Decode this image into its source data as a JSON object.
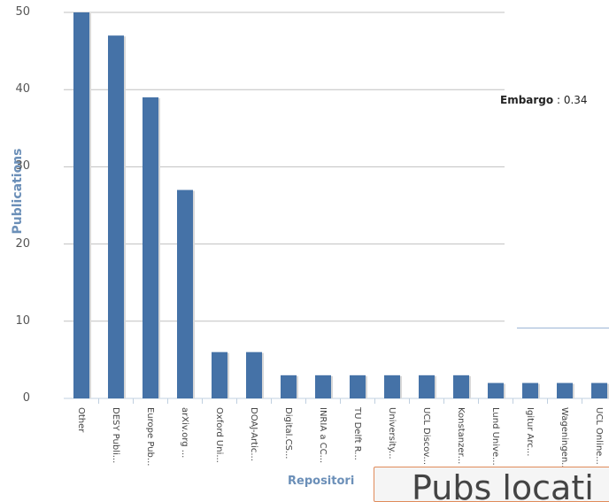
{
  "chart_data": {
    "type": "bar",
    "title": "",
    "xlabel": "Repositori",
    "ylabel": "Publications",
    "ylim": [
      0,
      50
    ],
    "yticks": [
      0,
      10,
      20,
      30,
      40,
      50
    ],
    "grid": true,
    "categories": [
      "Other",
      "DESY Publi...",
      "Europe Pub...",
      "arXiv.org ...",
      "Oxford Uni...",
      "DOAJ-Artic...",
      "Digital.CS...",
      "INRIA a CC...",
      "TU Delft R...",
      "University...",
      "UCL Discov...",
      "Konstanzer...",
      "Lund Unive...",
      "Igitur Arc...",
      "Wageningen...",
      "UCL Online..."
    ],
    "values": [
      50,
      47,
      39,
      27,
      6,
      6,
      3,
      3,
      3,
      3,
      3,
      3,
      2,
      2,
      2,
      2
    ],
    "bar_color": "#4572a7"
  },
  "tooltip": {
    "key": "Embargo",
    "value": " : 0.34"
  },
  "overlay_text": "Pubs locati"
}
